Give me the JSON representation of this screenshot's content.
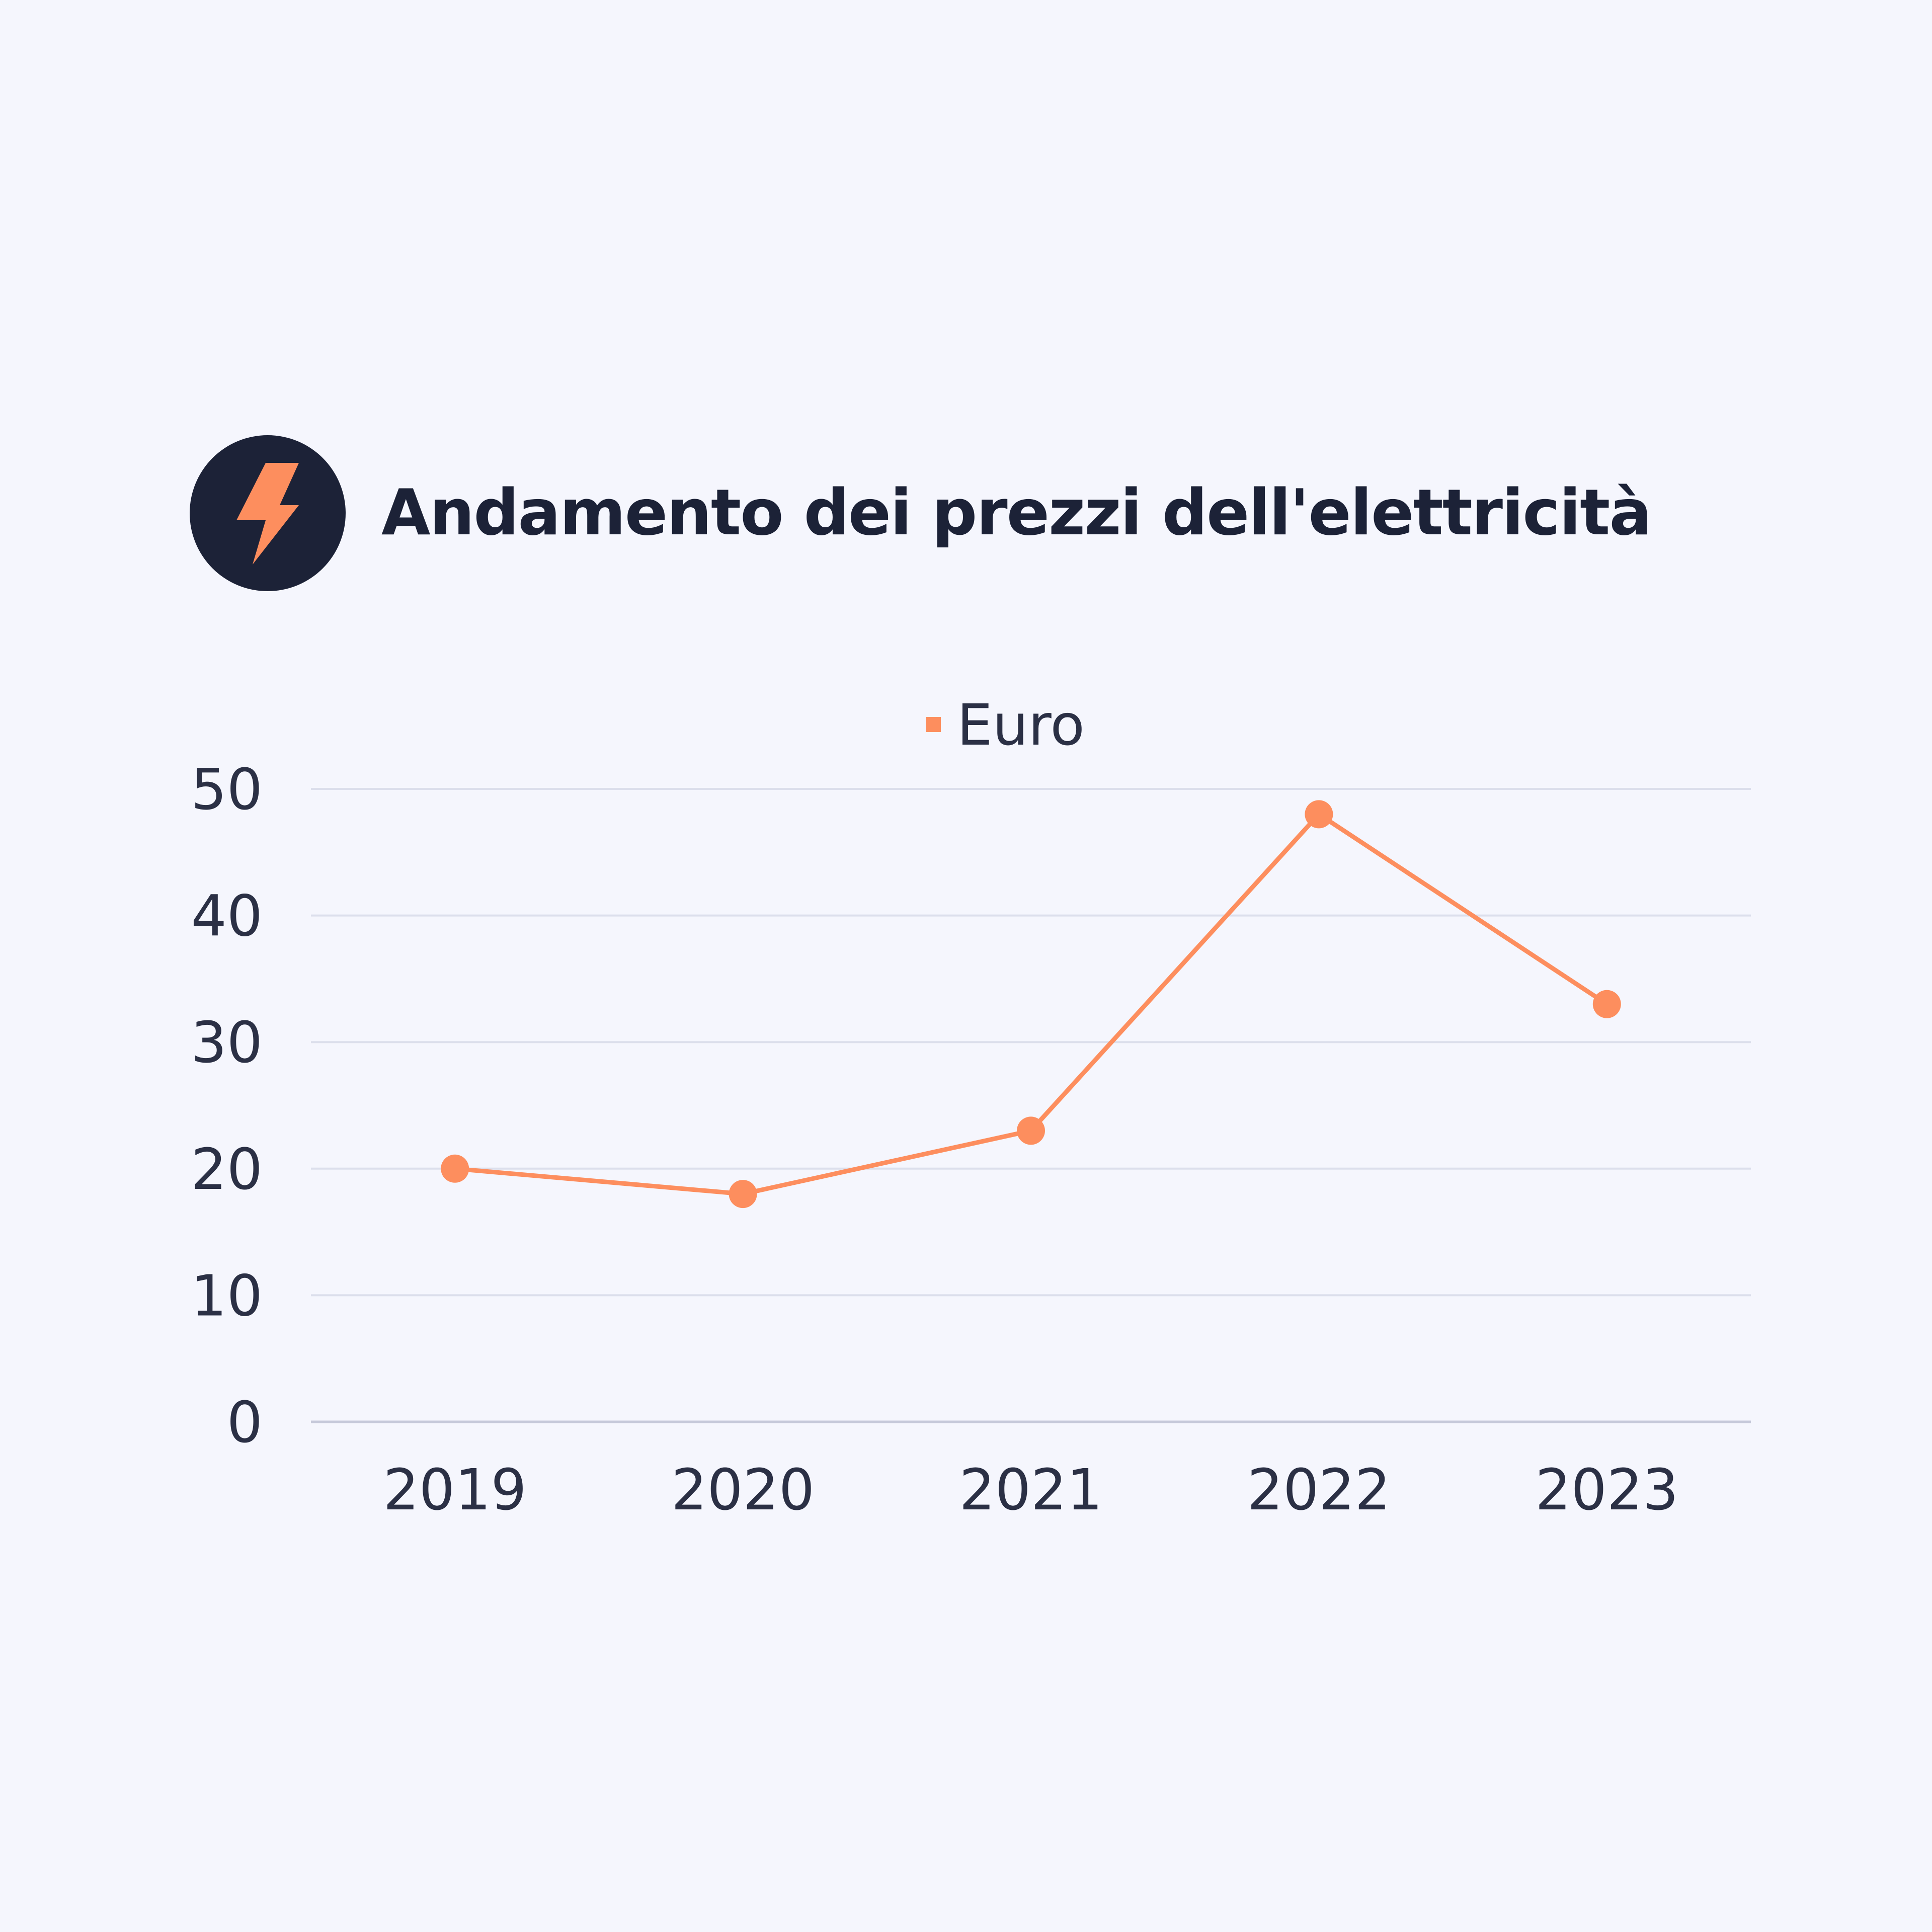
{
  "header": {
    "title": "Andamento dei prezzi dell'elettricità",
    "icon": "lightning-bolt-icon"
  },
  "colors": {
    "background": "#f5f6fd",
    "title": "#1c2237",
    "icon_circle": "#1c2237",
    "accent": "#fd8e5e",
    "grid": "#dcdfec",
    "axis": "#c6c9da",
    "tick_text": "#2b3045"
  },
  "chart_data": {
    "type": "line",
    "title": "Andamento dei prezzi dell'elettricità",
    "categories": [
      "2019",
      "2020",
      "2021",
      "2022",
      "2023"
    ],
    "series": [
      {
        "name": "Euro",
        "values": [
          20,
          18,
          23,
          48,
          33
        ]
      }
    ],
    "ylim": [
      0,
      50
    ],
    "yticks": [
      "0",
      "10",
      "20",
      "30",
      "40",
      "50"
    ],
    "grid": true,
    "legend": "top-center"
  }
}
